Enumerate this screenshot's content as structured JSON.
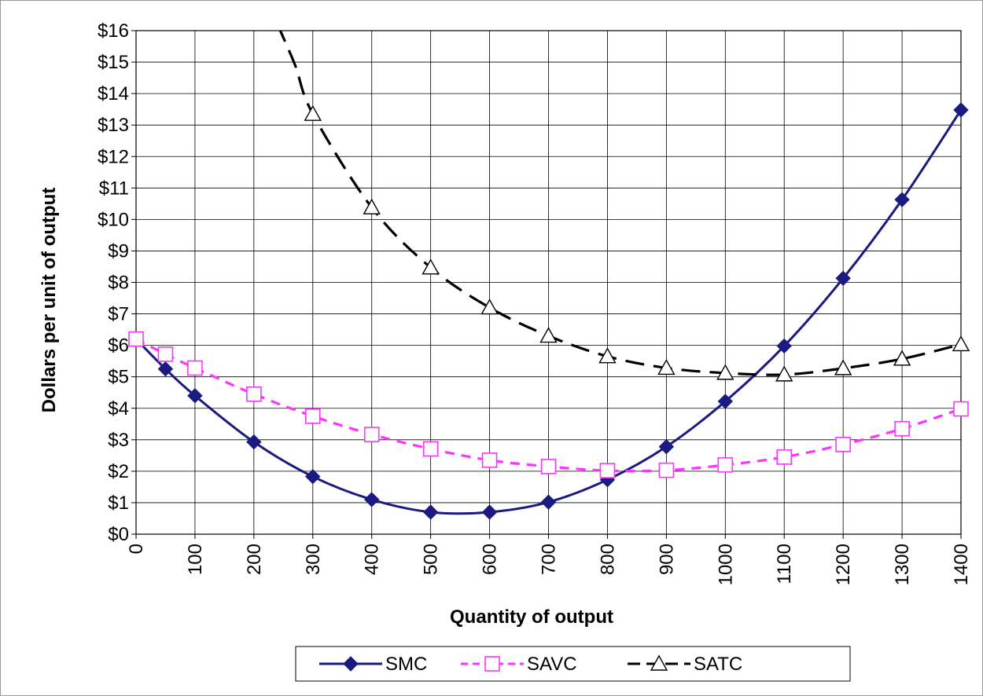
{
  "chart_data": {
    "type": "line",
    "title": "",
    "xlabel": "Quantity of output",
    "ylabel": "Dollars per unit of output",
    "ylim": [
      0,
      16
    ],
    "xlim": [
      0,
      1400
    ],
    "grid": true,
    "legend_position": "bottom",
    "y_ticks": [
      "$0",
      "$1",
      "$2",
      "$3",
      "$4",
      "$5",
      "$6",
      "$7",
      "$8",
      "$9",
      "$10",
      "$11",
      "$12",
      "$13",
      "$14",
      "$15",
      "$16"
    ],
    "x_ticks": [
      "0",
      "100",
      "200",
      "300",
      "400",
      "500",
      "600",
      "700",
      "800",
      "900",
      "1000",
      "1100",
      "1200",
      "1300",
      "1400"
    ],
    "series": [
      {
        "name": "SMC",
        "color": "#1a1a80",
        "line": "solid",
        "marker": "diamond",
        "x": [
          0,
          50,
          100,
          200,
          300,
          400,
          500,
          600,
          700,
          800,
          900,
          1000,
          1100,
          1200,
          1300,
          1400
        ],
        "y": [
          6.2,
          5.25,
          4.4,
          2.93,
          1.83,
          1.1,
          0.7,
          0.7,
          1.02,
          1.73,
          2.78,
          4.22,
          5.98,
          8.13,
          10.63,
          13.48
        ]
      },
      {
        "name": "SAVC",
        "color": "#ff33ff",
        "line": "dashed",
        "marker": "square",
        "x": [
          0,
          50,
          100,
          200,
          300,
          400,
          500,
          600,
          700,
          800,
          900,
          1000,
          1100,
          1200,
          1300,
          1400
        ],
        "y": [
          6.2,
          5.72,
          5.28,
          4.45,
          3.75,
          3.17,
          2.71,
          2.35,
          2.15,
          2.02,
          2.03,
          2.2,
          2.45,
          2.85,
          3.35,
          3.98
        ]
      },
      {
        "name": "SATC",
        "color": "#000000",
        "line": "dashed",
        "marker": "triangle",
        "x": [
          300,
          400,
          500,
          600,
          700,
          800,
          900,
          1000,
          1100,
          1200,
          1300,
          1400
        ],
        "y": [
          13.35,
          10.38,
          8.47,
          7.2,
          6.3,
          5.65,
          5.28,
          5.12,
          5.07,
          5.27,
          5.57,
          6.03
        ],
        "curve_extra": [
          [
            240,
            16.2
          ],
          [
            270,
            14.9
          ]
        ]
      }
    ]
  }
}
